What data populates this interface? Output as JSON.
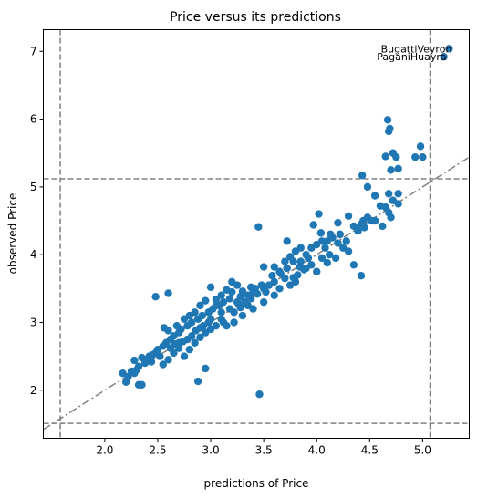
{
  "chart_data": {
    "type": "scatter",
    "title": "Price versus its predictions",
    "xlabel": "predictions of Price",
    "ylabel": "observed Price",
    "xlim": [
      1.42,
      5.44
    ],
    "ylim": [
      1.29,
      7.32
    ],
    "xticks": [
      2.0,
      2.5,
      3.0,
      3.5,
      4.0,
      4.5,
      5.0
    ],
    "xtick_labels": [
      "2.0",
      "2.5",
      "3.0",
      "3.5",
      "4.0",
      "4.5",
      "5.0"
    ],
    "yticks": [
      2,
      3,
      4,
      5,
      6,
      7
    ],
    "ytick_labels": [
      "2",
      "3",
      "4",
      "5",
      "6",
      "7"
    ],
    "grid": false,
    "marker_color": "#1f77b4",
    "reference_line": {
      "style": "dash-dot",
      "color": "#808080",
      "slope": 1.0,
      "intercept": 0.0
    },
    "threshold_lines": {
      "style": "dashed",
      "color": "#808080",
      "vertical_x": [
        1.58,
        5.07
      ],
      "horizontal_y": [
        1.51,
        5.12
      ]
    },
    "annotations": [
      {
        "text": "BugattiVeyron",
        "x": 5.25,
        "y": 7.04
      },
      {
        "text": "PaganiHuayra",
        "x": 5.2,
        "y": 6.92
      }
    ],
    "points": [
      [
        5.25,
        7.04
      ],
      [
        5.2,
        6.92
      ],
      [
        4.67,
        5.99
      ],
      [
        4.69,
        5.86
      ],
      [
        4.68,
        5.82
      ],
      [
        4.72,
        5.5
      ],
      [
        4.65,
        5.45
      ],
      [
        4.75,
        5.44
      ],
      [
        4.7,
        5.25
      ],
      [
        4.77,
        5.27
      ],
      [
        4.43,
        5.17
      ],
      [
        4.98,
        5.6
      ],
      [
        4.93,
        5.44
      ],
      [
        5.0,
        5.44
      ],
      [
        4.48,
        5.0
      ],
      [
        4.55,
        4.87
      ],
      [
        4.68,
        4.9
      ],
      [
        4.77,
        4.9
      ],
      [
        4.72,
        4.8
      ],
      [
        4.77,
        4.75
      ],
      [
        4.68,
        4.62
      ],
      [
        4.65,
        4.7
      ],
      [
        4.6,
        4.72
      ],
      [
        4.48,
        4.55
      ],
      [
        4.44,
        4.5
      ],
      [
        4.42,
        4.45
      ],
      [
        4.35,
        4.42
      ],
      [
        4.39,
        4.35
      ],
      [
        4.52,
        4.5
      ],
      [
        4.42,
        3.69
      ],
      [
        4.02,
        4.6
      ],
      [
        4.04,
        4.32
      ],
      [
        3.97,
        4.44
      ],
      [
        4.1,
        4.2
      ],
      [
        4.15,
        4.25
      ],
      [
        4.2,
        4.17
      ],
      [
        4.25,
        4.1
      ],
      [
        4.3,
        4.05
      ],
      [
        4.3,
        4.57
      ],
      [
        4.2,
        4.47
      ],
      [
        4.13,
        4.3
      ],
      [
        4.05,
        4.2
      ],
      [
        4.0,
        4.15
      ],
      [
        3.95,
        4.1
      ],
      [
        4.05,
        3.95
      ],
      [
        4.1,
        3.88
      ],
      [
        3.9,
        4.0
      ],
      [
        3.85,
        4.1
      ],
      [
        3.8,
        4.05
      ],
      [
        3.75,
        3.97
      ],
      [
        3.7,
        3.9
      ],
      [
        3.72,
        4.2
      ],
      [
        3.88,
        3.78
      ],
      [
        3.82,
        3.7
      ],
      [
        3.78,
        3.66
      ],
      [
        3.7,
        3.65
      ],
      [
        3.65,
        3.75
      ],
      [
        3.6,
        3.6
      ],
      [
        3.55,
        3.55
      ],
      [
        3.58,
        3.69
      ],
      [
        3.5,
        3.5
      ],
      [
        3.45,
        4.41
      ],
      [
        3.5,
        3.82
      ],
      [
        3.42,
        3.5
      ],
      [
        3.4,
        3.45
      ],
      [
        3.38,
        3.52
      ],
      [
        3.35,
        3.4
      ],
      [
        3.3,
        3.46
      ],
      [
        3.28,
        3.38
      ],
      [
        3.25,
        3.55
      ],
      [
        3.2,
        3.45
      ],
      [
        3.18,
        3.35
      ],
      [
        3.15,
        3.48
      ],
      [
        3.12,
        3.3
      ],
      [
        3.1,
        3.4
      ],
      [
        3.08,
        3.25
      ],
      [
        3.05,
        3.34
      ],
      [
        3.02,
        3.2
      ],
      [
        3.0,
        3.52
      ],
      [
        2.98,
        3.15
      ],
      [
        2.95,
        3.32
      ],
      [
        2.92,
        3.1
      ],
      [
        2.9,
        3.25
      ],
      [
        2.88,
        3.05
      ],
      [
        2.85,
        3.15
      ],
      [
        2.82,
        3.0
      ],
      [
        2.8,
        3.1
      ],
      [
        2.78,
        2.95
      ],
      [
        2.75,
        3.05
      ],
      [
        2.72,
        2.9
      ],
      [
        2.7,
        2.85
      ],
      [
        2.68,
        2.95
      ],
      [
        2.65,
        2.8
      ],
      [
        2.62,
        2.75
      ],
      [
        2.6,
        2.88
      ],
      [
        2.58,
        2.7
      ],
      [
        2.56,
        2.92
      ],
      [
        2.55,
        2.65
      ],
      [
        2.5,
        2.6
      ],
      [
        2.48,
        2.55
      ],
      [
        2.45,
        2.52
      ],
      [
        2.42,
        2.5
      ],
      [
        2.4,
        2.45
      ],
      [
        2.38,
        2.4
      ],
      [
        2.35,
        2.48
      ],
      [
        2.32,
        2.35
      ],
      [
        2.3,
        2.3
      ],
      [
        2.28,
        2.44
      ],
      [
        2.25,
        2.28
      ],
      [
        2.22,
        2.2
      ],
      [
        2.2,
        2.12
      ],
      [
        2.17,
        2.25
      ],
      [
        2.28,
        2.25
      ],
      [
        2.32,
        2.08
      ],
      [
        2.35,
        2.08
      ],
      [
        2.88,
        2.13
      ],
      [
        2.95,
        2.32
      ],
      [
        3.46,
        1.94
      ],
      [
        2.48,
        3.38
      ],
      [
        2.6,
        3.43
      ],
      [
        3.05,
        3.25
      ],
      [
        3.3,
        3.1
      ],
      [
        3.22,
        3.0
      ],
      [
        3.15,
        2.95
      ],
      [
        3.1,
        3.05
      ],
      [
        3.0,
        2.9
      ],
      [
        2.95,
        2.85
      ],
      [
        2.9,
        2.78
      ],
      [
        2.85,
        2.7
      ],
      [
        2.8,
        2.6
      ],
      [
        2.75,
        2.5
      ],
      [
        2.7,
        2.62
      ],
      [
        2.65,
        2.55
      ],
      [
        2.6,
        2.45
      ],
      [
        2.55,
        2.38
      ],
      [
        3.2,
        3.6
      ],
      [
        3.25,
        3.3
      ],
      [
        3.35,
        3.25
      ],
      [
        3.4,
        3.2
      ],
      [
        3.5,
        3.3
      ],
      [
        3.6,
        3.4
      ],
      [
        3.65,
        3.5
      ],
      [
        3.75,
        3.55
      ],
      [
        3.8,
        3.6
      ],
      [
        3.85,
        3.9
      ],
      [
        3.9,
        3.8
      ],
      [
        3.95,
        3.85
      ],
      [
        4.0,
        3.75
      ],
      [
        4.08,
        4.1
      ],
      [
        4.12,
        4.0
      ],
      [
        4.18,
        3.95
      ],
      [
        4.22,
        4.3
      ],
      [
        4.28,
        4.2
      ],
      [
        4.35,
        3.85
      ],
      [
        4.45,
        4.4
      ],
      [
        4.55,
        4.5
      ],
      [
        4.62,
        4.42
      ],
      [
        4.7,
        4.55
      ],
      [
        3.1,
        3.15
      ],
      [
        3.12,
        3.0
      ],
      [
        3.05,
        2.95
      ],
      [
        3.0,
        3.05
      ],
      [
        2.98,
        3.0
      ],
      [
        2.93,
        2.95
      ],
      [
        3.18,
        3.2
      ],
      [
        3.22,
        3.15
      ],
      [
        3.28,
        3.22
      ],
      [
        3.32,
        3.3
      ],
      [
        3.38,
        3.35
      ],
      [
        3.44,
        3.42
      ],
      [
        2.9,
        2.92
      ],
      [
        2.86,
        2.88
      ],
      [
        2.82,
        2.8
      ],
      [
        2.78,
        2.75
      ],
      [
        2.74,
        2.72
      ],
      [
        2.7,
        2.7
      ],
      [
        3.6,
        3.82
      ],
      [
        3.66,
        3.72
      ],
      [
        3.72,
        3.8
      ],
      [
        3.78,
        3.9
      ],
      [
        3.84,
        3.82
      ],
      [
        3.92,
        3.95
      ],
      [
        2.62,
        2.62
      ],
      [
        2.66,
        2.68
      ],
      [
        2.52,
        2.5
      ],
      [
        2.44,
        2.42
      ],
      [
        3.48,
        3.55
      ],
      [
        3.52,
        3.45
      ]
    ]
  }
}
